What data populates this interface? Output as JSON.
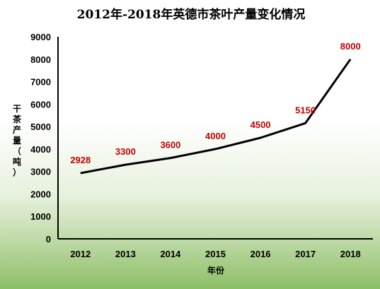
{
  "colors": {
    "line": "#000000",
    "data_label": "#c00000",
    "axis": "#000000"
  },
  "chart_data": {
    "type": "line",
    "title": "2012年-2018年英德市茶叶产量变化情况",
    "xlabel": "年份",
    "ylabel": "干茶产量（吨）",
    "categories": [
      "2012",
      "2013",
      "2014",
      "2015",
      "2016",
      "2017",
      "2018"
    ],
    "series": [
      {
        "values": [
          2928,
          3300,
          3600,
          4000,
          4500,
          5150,
          8000
        ],
        "labels": [
          "2928",
          "3300",
          "3600",
          "4000",
          "4500",
          "5150",
          "8000"
        ]
      }
    ],
    "ylim": [
      0,
      9000
    ],
    "yticks": [
      "0",
      "1000",
      "2000",
      "3000",
      "4000",
      "5000",
      "6000",
      "7000",
      "8000",
      "9000"
    ],
    "grid": false,
    "legend": "none"
  }
}
